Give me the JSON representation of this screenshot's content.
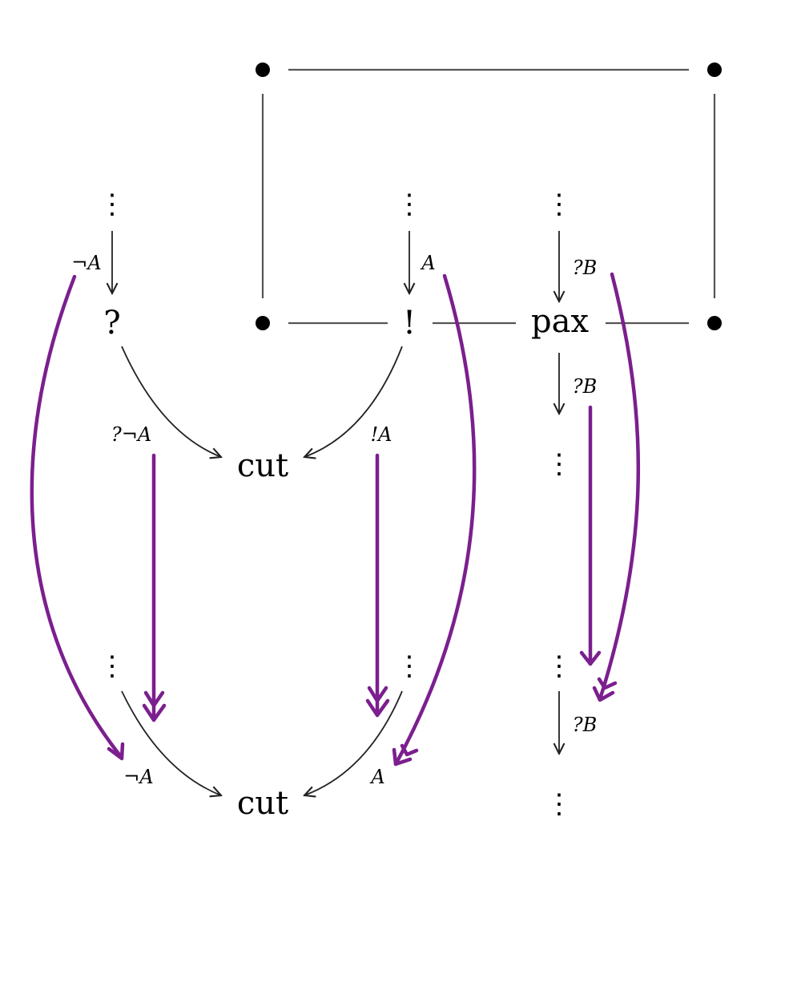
{
  "nodes": {
    "why_not_top": "?",
    "bang_top": "!",
    "pax": "pax",
    "cut_top": "cut",
    "cut_bottom": "cut"
  },
  "labels": {
    "neg_a_top": "¬A",
    "a_top": "A",
    "why_b_in": "?B",
    "why_b_out": "?B",
    "why_neg_a": "?¬A",
    "bang_a": "!A",
    "neg_a_bottom": "¬A",
    "a_bottom": "A",
    "why_b_bottom": "?B"
  },
  "ellipsis": "⋮",
  "colors": {
    "highlight": "#7b1f8e",
    "box": "#555555",
    "ink": "#000000"
  }
}
